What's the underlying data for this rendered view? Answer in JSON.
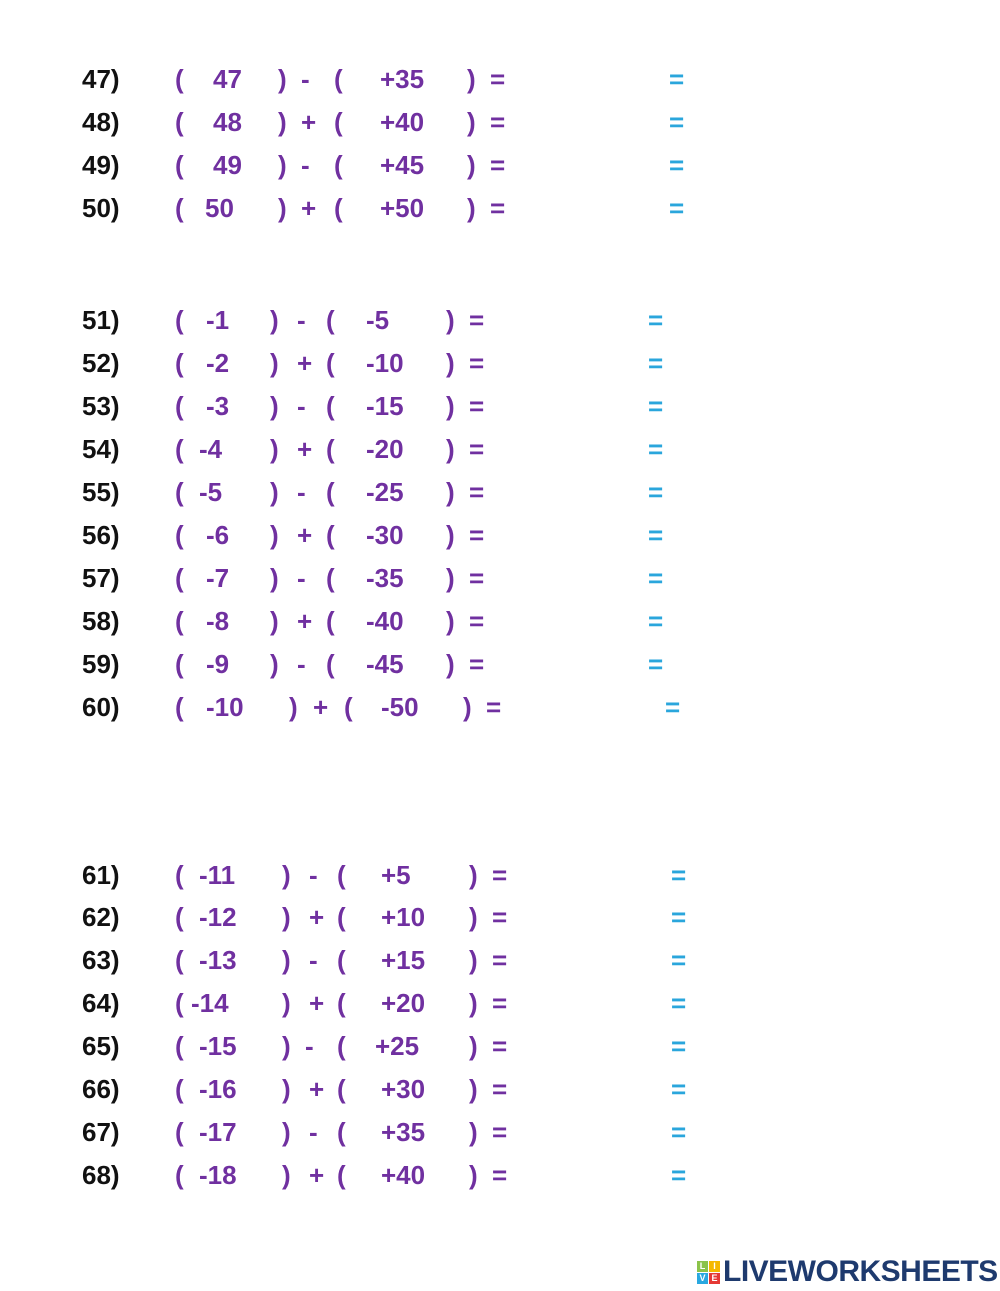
{
  "colors": {
    "number": "#111111",
    "expression": "#7030a0",
    "answer_equals": "#2aa6dc"
  },
  "sections": [
    {
      "rows": [
        {
          "num": "47)",
          "a": "47",
          "op": "-",
          "b": "+35",
          "eq": "=",
          "eq2": "="
        },
        {
          "num": "48)",
          "a": "48",
          "op": "+",
          "b": "+40",
          "eq": "=",
          "eq2": "="
        },
        {
          "num": "49)",
          "a": "49",
          "op": "-",
          "b": "+45",
          "eq": "=",
          "eq2": "="
        },
        {
          "num": "50)",
          "a": "50",
          "op": "+",
          "b": "+50",
          "eq": "=",
          "eq2": "="
        }
      ]
    },
    {
      "rows": [
        {
          "num": "51)",
          "a": "-1",
          "op": "-",
          "b": "-5",
          "eq": "=",
          "eq2": "="
        },
        {
          "num": "52)",
          "a": "-2",
          "op": "+",
          "b": "-10",
          "eq": "=",
          "eq2": "="
        },
        {
          "num": "53)",
          "a": "-3",
          "op": "-",
          "b": "-15",
          "eq": "=",
          "eq2": "="
        },
        {
          "num": "54)",
          "a": "-4",
          "op": "+",
          "b": "-20",
          "eq": "=",
          "eq2": "="
        },
        {
          "num": "55)",
          "a": "-5",
          "op": "-",
          "b": "-25",
          "eq": "=",
          "eq2": "="
        },
        {
          "num": "56)",
          "a": "-6",
          "op": "+",
          "b": "-30",
          "eq": "=",
          "eq2": "="
        },
        {
          "num": "57)",
          "a": "-7",
          "op": "-",
          "b": "-35",
          "eq": "=",
          "eq2": "="
        },
        {
          "num": "58)",
          "a": "-8",
          "op": "+",
          "b": "-40",
          "eq": "=",
          "eq2": "="
        },
        {
          "num": "59)",
          "a": "-9",
          "op": "-",
          "b": "-45",
          "eq": "=",
          "eq2": "="
        },
        {
          "num": "60)",
          "a": "-10",
          "op": "+",
          "b": "-50",
          "eq": "=",
          "eq2": "="
        }
      ]
    },
    {
      "rows": [
        {
          "num": "61)",
          "a": "-11",
          "op": "-",
          "b": "+5",
          "eq": "=",
          "eq2": "="
        },
        {
          "num": "62)",
          "a": "-12",
          "op": "+",
          "b": "+10",
          "eq": "=",
          "eq2": "="
        },
        {
          "num": "63)",
          "a": "-13",
          "op": "-",
          "b": "+15",
          "eq": "=",
          "eq2": "="
        },
        {
          "num": "64)",
          "a": "-14",
          "op": "+",
          "b": "+20",
          "eq": "=",
          "eq2": "="
        },
        {
          "num": "65)",
          "a": "-15",
          "op": "-",
          "b": "+25",
          "eq": "=",
          "eq2": "="
        },
        {
          "num": "66)",
          "a": "-16",
          "op": "+",
          "b": "+30",
          "eq": "=",
          "eq2": "="
        },
        {
          "num": "67)",
          "a": "-17",
          "op": "-",
          "b": "+35",
          "eq": "=",
          "eq2": "="
        },
        {
          "num": "68)",
          "a": "-18",
          "op": "+",
          "b": "+40",
          "eq": "=",
          "eq2": "="
        }
      ]
    }
  ],
  "paren_open": "(",
  "paren_close": ")",
  "logo": {
    "cube": [
      "L",
      "I",
      "V",
      "E"
    ],
    "text": "LIVEWORKSHEETS"
  }
}
